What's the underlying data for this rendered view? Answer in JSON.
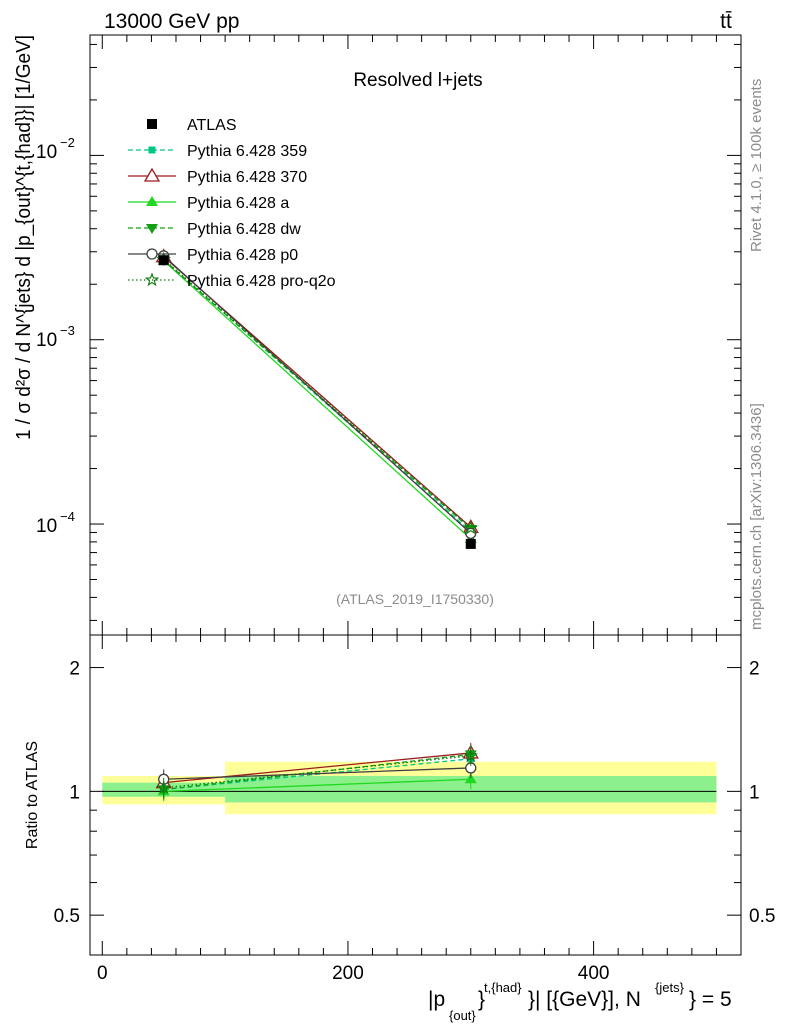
{
  "header": {
    "energy_label": "13000 GeV pp",
    "process_label": "tt̄"
  },
  "side_labels": {
    "rivet": "Rivet 4.1.0, ≥ 100k events",
    "source": "mcplots.cern.ch [arXiv:1306.3436]"
  },
  "colors": {
    "ATLAS": "#000000",
    "Pythia 6.428 359": "#00c882",
    "Pythia 6.428 370": "#9b1b1b",
    "Pythia 6.428 a": "#1fd81f",
    "Pythia 6.428 dw": "#12a012",
    "Pythia 6.428 p0": "#404040",
    "Pythia 6.428 pro-q2o": "#0a7a0a",
    "band_yellow": "#ffff99",
    "band_green": "#8cf08c",
    "label_grey": "#8c8c8c"
  },
  "chart_data": [
    {
      "type": "line",
      "panel": "main",
      "title": "Resolved l+jets",
      "analysis_tag": "(ATLAS_2019_I1750330)",
      "ylabel": "1 / σ d²σ / d N^{jets} d |p_{out}^{t,{had}}| [1/GeV]",
      "y_scale": "log",
      "xlim": [
        -10,
        520
      ],
      "ylim": [
        2.5e-05,
        0.045
      ],
      "y_tick_labels": [
        "10^{-2}",
        "10^{-3}",
        "10^{-4}"
      ],
      "y_tick_values": [
        0.01,
        0.001,
        0.0001
      ],
      "x": [
        50,
        300
      ],
      "series": [
        {
          "name": "ATLAS",
          "values": [
            0.0027,
            7.8e-05
          ],
          "marker": "square",
          "style": "none"
        },
        {
          "name": "Pythia 6.428 359",
          "values": [
            0.00272,
            9.1e-05
          ],
          "marker": "small-square",
          "style": "dashed"
        },
        {
          "name": "Pythia 6.428 370",
          "values": [
            0.00282,
            9.6e-05
          ],
          "marker": "open-triangle",
          "style": "solid"
        },
        {
          "name": "Pythia 6.428 a",
          "values": [
            0.00268,
            8.3e-05
          ],
          "marker": "triangle",
          "style": "solid"
        },
        {
          "name": "Pythia 6.428 dw",
          "values": [
            0.0027,
            9.4e-05
          ],
          "marker": "down-triangle",
          "style": "dashed"
        },
        {
          "name": "Pythia 6.428 p0",
          "values": [
            0.00285,
            8.9e-05
          ],
          "marker": "open-circle",
          "style": "solid"
        },
        {
          "name": "Pythia 6.428 pro-q2o",
          "values": [
            0.00273,
            9.5e-05
          ],
          "marker": "open-star",
          "style": "dotted"
        }
      ]
    },
    {
      "type": "line",
      "panel": "ratio",
      "ylabel": "Ratio to ATLAS",
      "y_scale": "log",
      "xlim": [
        -10,
        520
      ],
      "ylim": [
        0.4,
        2.4
      ],
      "y_tick_labels": [
        "2",
        "1",
        "0.5"
      ],
      "y_tick_values": [
        2,
        1,
        0.5
      ],
      "x_tick_labels": [
        "0",
        "200",
        "400"
      ],
      "x_tick_values": [
        0,
        200,
        400
      ],
      "xlabel": "|p_{out}^{t,{had}}| [{GeV}], N^{jets} = 5",
      "x": [
        50,
        300
      ],
      "bands": [
        {
          "x_range": [
            0,
            100
          ],
          "outer": [
            0.93,
            1.09
          ],
          "inner": [
            0.97,
            1.05
          ]
        },
        {
          "x_range": [
            100,
            500
          ],
          "outer": [
            0.88,
            1.18
          ],
          "inner": [
            0.94,
            1.09
          ]
        }
      ],
      "series": [
        {
          "name": "Pythia 6.428 359",
          "values": [
            1.01,
            1.2
          ]
        },
        {
          "name": "Pythia 6.428 370",
          "values": [
            1.05,
            1.24
          ]
        },
        {
          "name": "Pythia 6.428 a",
          "values": [
            1.0,
            1.07
          ]
        },
        {
          "name": "Pythia 6.428 dw",
          "values": [
            1.01,
            1.23
          ]
        },
        {
          "name": "Pythia 6.428 p0",
          "values": [
            1.07,
            1.14
          ]
        },
        {
          "name": "Pythia 6.428 pro-q2o",
          "values": [
            1.02,
            1.22
          ]
        }
      ]
    }
  ]
}
